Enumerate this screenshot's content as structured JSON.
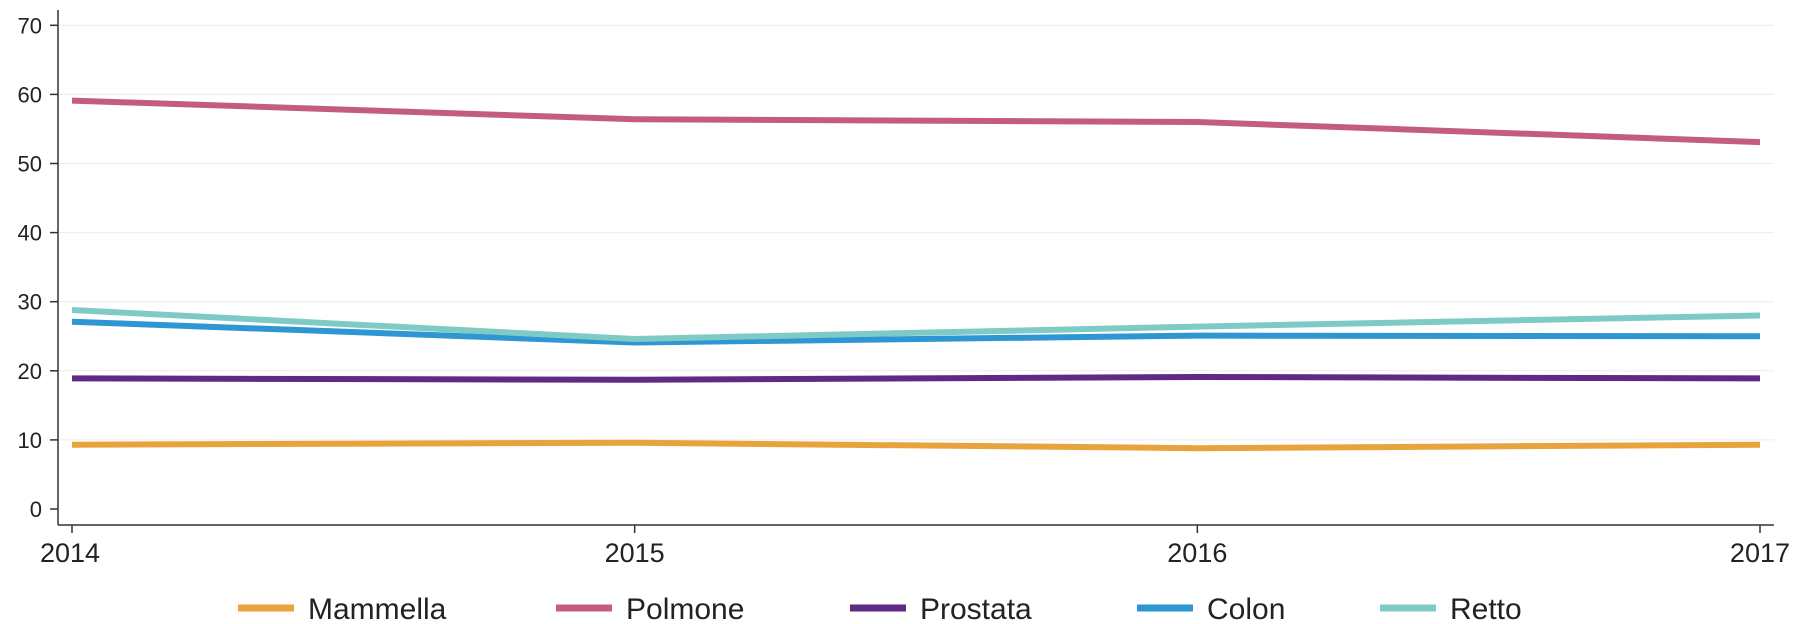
{
  "chart_data": {
    "type": "line",
    "x": [
      "2014",
      "2015",
      "2016",
      "2017"
    ],
    "ylim": [
      0,
      70
    ],
    "y_ticks": [
      0,
      10,
      20,
      30,
      40,
      50,
      60,
      70
    ],
    "grid": "horizontal",
    "legend_position": "bottom",
    "series": [
      {
        "name": "Mammella",
        "color": "#E8A33D",
        "values": [
          9.3,
          9.6,
          8.8,
          9.3
        ]
      },
      {
        "name": "Polmone",
        "color": "#C45C82",
        "values": [
          59.1,
          56.4,
          56.0,
          53.1
        ]
      },
      {
        "name": "Prostata",
        "color": "#5E2A84",
        "values": [
          18.9,
          18.7,
          19.1,
          18.9
        ]
      },
      {
        "name": "Colon",
        "color": "#2E96D3",
        "values": [
          27.1,
          24.1,
          25.1,
          25.0
        ]
      },
      {
        "name": "Retto",
        "color": "#7ECBC6",
        "values": [
          28.8,
          24.6,
          26.4,
          28.0
        ]
      }
    ]
  }
}
